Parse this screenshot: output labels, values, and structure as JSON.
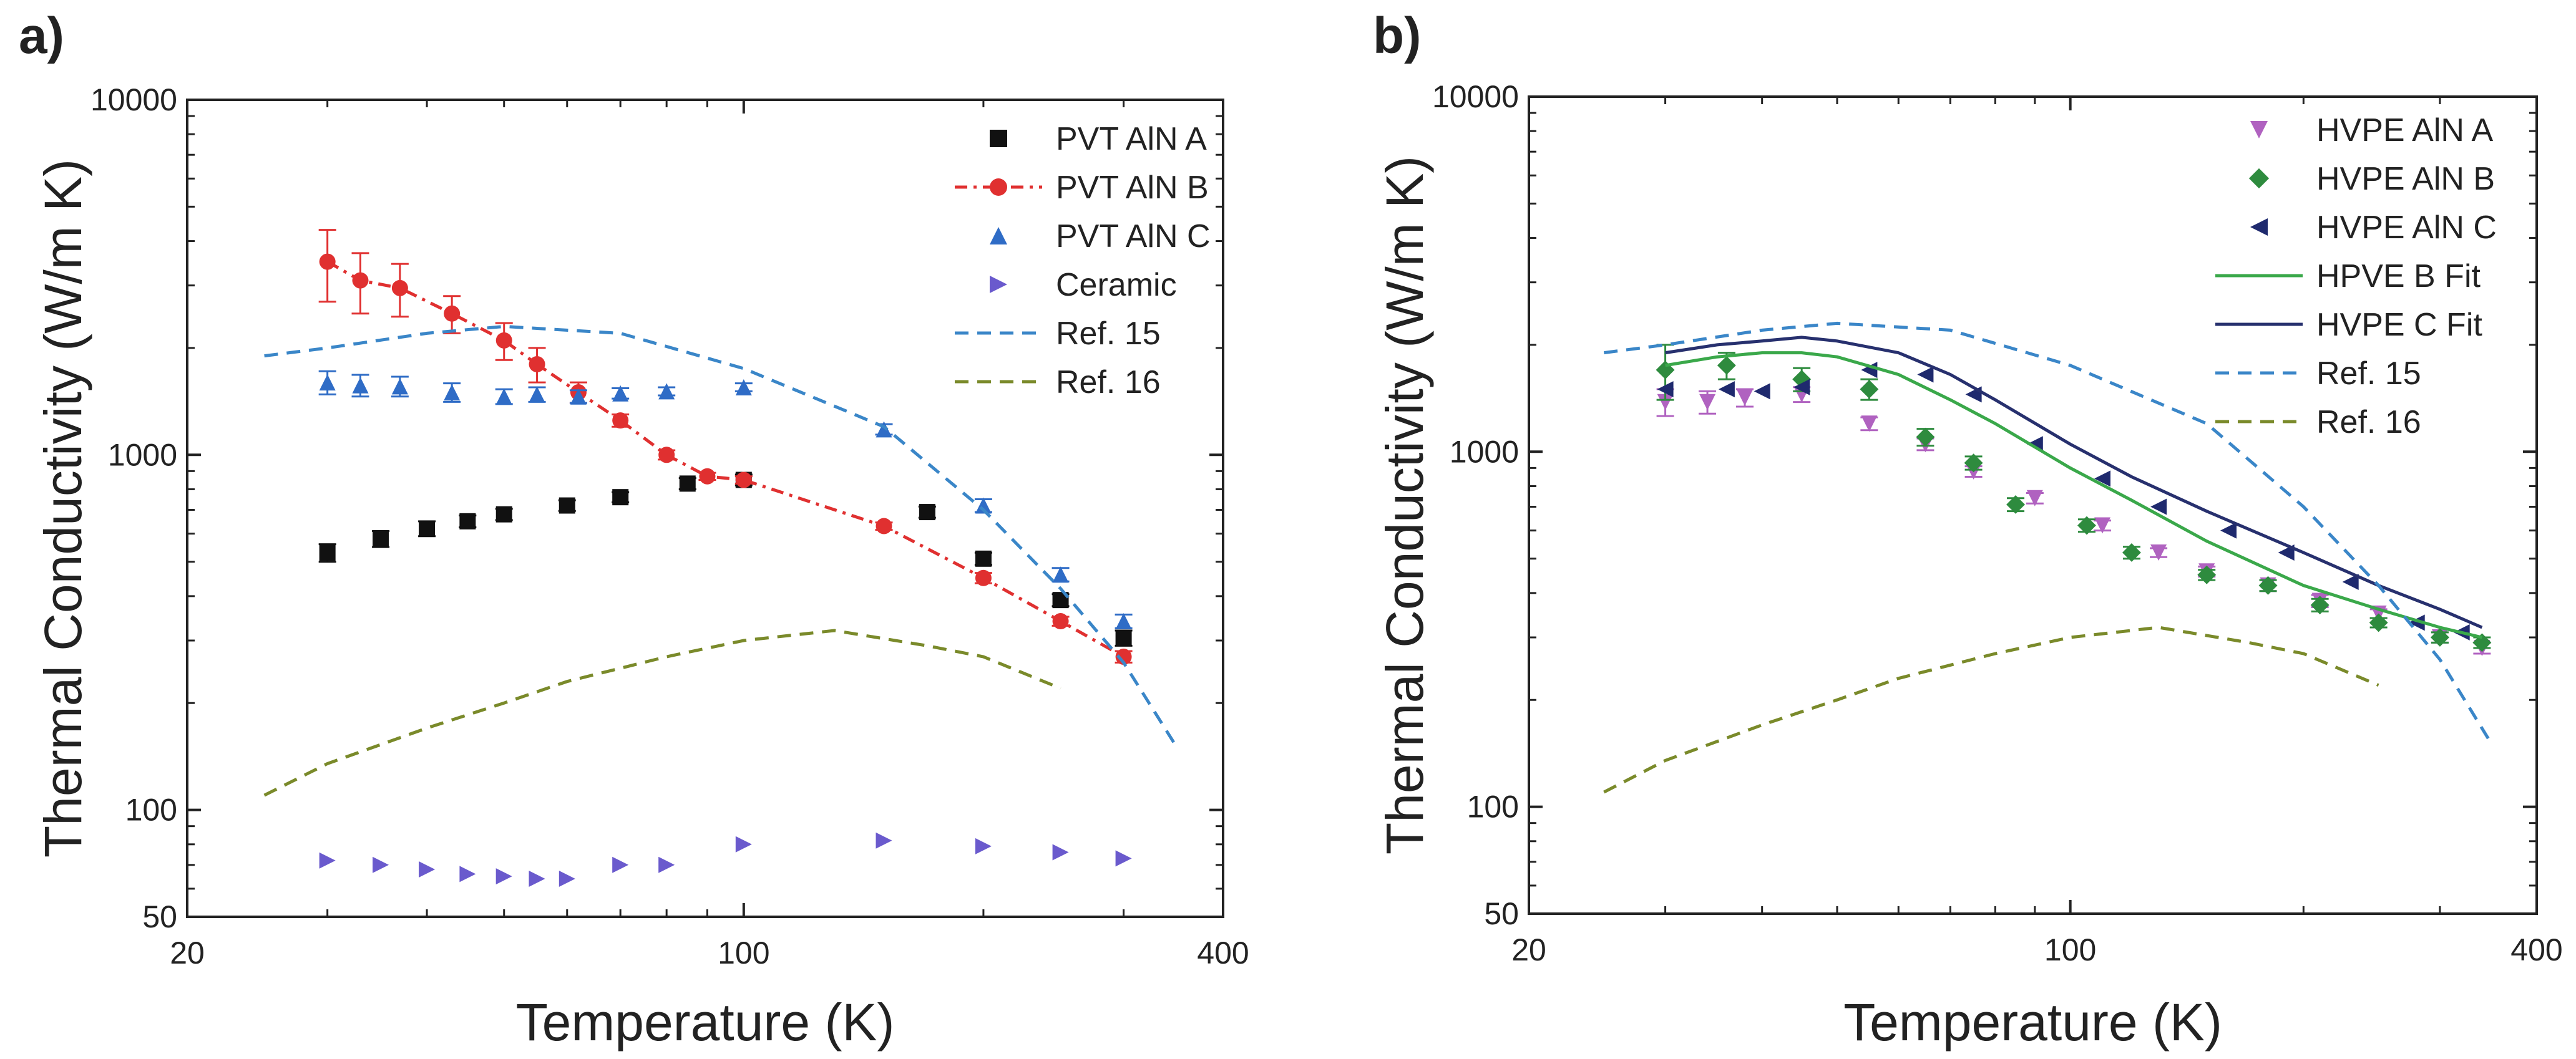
{
  "chart_data": [
    {
      "type": "scatter",
      "panel_label": "a)",
      "xlabel": "Temperature (K)",
      "ylabel": "Thermal Conductivity (W/m K)",
      "xscale": "log",
      "yscale": "log",
      "xlim": [
        20,
        400
      ],
      "ylim": [
        50,
        10000
      ],
      "xticks": [
        20,
        100,
        400
      ],
      "yticks": [
        50,
        100,
        1000,
        10000
      ],
      "legend_position": "top-right",
      "series": [
        {
          "name": "PVT AlN A",
          "legend_label": "PVT AlN A",
          "marker": "square",
          "color": "#111111",
          "line": "none",
          "x": [
            30,
            35,
            40,
            45,
            50,
            60,
            70,
            85,
            100,
            170,
            200,
            250,
            300
          ],
          "y": [
            530,
            580,
            620,
            650,
            680,
            720,
            760,
            830,
            850,
            690,
            510,
            390,
            305
          ],
          "err": [
            30,
            30,
            30,
            25,
            25,
            25,
            25,
            30,
            30,
            25,
            20,
            15,
            15
          ]
        },
        {
          "name": "PVT AlN B",
          "legend_label": "PVT AlN B",
          "marker": "circle",
          "color": "#e03030",
          "line": "dashdot",
          "x": [
            30,
            33,
            37,
            43,
            50,
            55,
            62,
            70,
            80,
            90,
            100,
            150,
            200,
            250,
            300
          ],
          "y": [
            3500,
            3100,
            2950,
            2500,
            2100,
            1800,
            1500,
            1250,
            1000,
            870,
            850,
            630,
            450,
            340,
            270
          ],
          "err": [
            800,
            600,
            500,
            300,
            250,
            200,
            100,
            50,
            30,
            20,
            20,
            15,
            15,
            10,
            10
          ]
        },
        {
          "name": "PVT AlN C",
          "legend_label": "PVT AlN C",
          "marker": "triangle-up",
          "color": "#2f6cc6",
          "line": "none",
          "x": [
            30,
            33,
            37,
            43,
            50,
            55,
            62,
            70,
            80,
            100,
            150,
            200,
            250,
            300
          ],
          "y": [
            1600,
            1570,
            1560,
            1500,
            1460,
            1480,
            1460,
            1490,
            1510,
            1550,
            1180,
            720,
            460,
            340
          ],
          "err": [
            120,
            110,
            100,
            90,
            70,
            70,
            60,
            50,
            40,
            40,
            40,
            30,
            20,
            15
          ]
        },
        {
          "name": "Ceramic",
          "legend_label": "Ceramic",
          "marker": "triangle-right",
          "color": "#6a5acd",
          "line": "none",
          "x": [
            30,
            35,
            40,
            45,
            50,
            55,
            60,
            70,
            80,
            100,
            150,
            200,
            250,
            300
          ],
          "y": [
            72,
            70,
            68,
            66,
            65,
            64,
            64,
            70,
            70,
            80,
            82,
            79,
            76,
            73
          ]
        },
        {
          "name": "Ref. 15",
          "legend_label": "Ref. 15",
          "marker": "none",
          "color": "#3a86c8",
          "line": "dashed",
          "x": [
            25,
            30,
            40,
            50,
            70,
            100,
            150,
            200,
            250,
            300,
            350
          ],
          "y": [
            1900,
            2000,
            2200,
            2300,
            2200,
            1750,
            1200,
            700,
            420,
            260,
            150
          ]
        },
        {
          "name": "Ref. 16",
          "legend_label": "Ref. 16",
          "marker": "none",
          "color": "#7a8a2a",
          "line": "dashed",
          "x": [
            25,
            30,
            40,
            50,
            60,
            80,
            100,
            130,
            170,
            200,
            250
          ],
          "y": [
            110,
            135,
            170,
            200,
            230,
            270,
            300,
            320,
            290,
            270,
            220
          ]
        }
      ]
    },
    {
      "type": "scatter",
      "panel_label": "b)",
      "xlabel": "Temperature (K)",
      "ylabel": "Thermal Conductivity (W/m K)",
      "xscale": "log",
      "yscale": "log",
      "xlim": [
        20,
        400
      ],
      "ylim": [
        50,
        10000
      ],
      "xticks": [
        20,
        100,
        400
      ],
      "yticks": [
        50,
        100,
        1000,
        10000
      ],
      "legend_position": "top-right",
      "series": [
        {
          "name": "HVPE AlN A",
          "legend_label": "HVPE AlN A",
          "marker": "triangle-down",
          "color": "#b062c0",
          "line": "none",
          "x": [
            30,
            34,
            38,
            45,
            55,
            65,
            75,
            90,
            110,
            130,
            150,
            180,
            210,
            250,
            300,
            340
          ],
          "y": [
            1380,
            1380,
            1420,
            1450,
            1200,
            1050,
            880,
            740,
            620,
            520,
            460,
            420,
            380,
            350,
            300,
            280
          ],
          "err": [
            120,
            100,
            80,
            70,
            50,
            40,
            30,
            25,
            20,
            15,
            15,
            15,
            15,
            10,
            10,
            10
          ]
        },
        {
          "name": "HVPE AlN B",
          "legend_label": "HVPE AlN B",
          "marker": "diamond",
          "color": "#2e8b3e",
          "line": "none",
          "x": [
            30,
            36,
            45,
            55,
            65,
            75,
            85,
            105,
            120,
            150,
            180,
            210,
            250,
            300,
            340
          ],
          "y": [
            1700,
            1750,
            1600,
            1500,
            1100,
            930,
            710,
            620,
            520,
            450,
            420,
            370,
            330,
            300,
            290
          ],
          "err": [
            300,
            150,
            120,
            100,
            60,
            40,
            30,
            25,
            20,
            15,
            15,
            15,
            10,
            10,
            10
          ]
        },
        {
          "name": "HVPE AlN C",
          "legend_label": "HVPE AlN C",
          "marker": "triangle-left",
          "color": "#1f2a6e",
          "line": "none",
          "x": [
            30,
            36,
            40,
            45,
            55,
            65,
            75,
            90,
            110,
            130,
            160,
            190,
            230,
            280,
            320
          ],
          "y": [
            1500,
            1500,
            1480,
            1520,
            1700,
            1650,
            1450,
            1050,
            840,
            700,
            600,
            520,
            430,
            330,
            310
          ]
        },
        {
          "name": "HPVE B Fit",
          "legend_label": "HPVE B Fit",
          "marker": "none",
          "color": "#3aa84a",
          "line": "solid",
          "x": [
            30,
            35,
            40,
            45,
            50,
            60,
            70,
            80,
            100,
            120,
            150,
            200,
            250,
            300,
            340
          ],
          "y": [
            1750,
            1850,
            1900,
            1900,
            1850,
            1650,
            1400,
            1200,
            900,
            730,
            560,
            420,
            360,
            320,
            300
          ]
        },
        {
          "name": "HVPE C Fit",
          "legend_label": "HVPE C Fit",
          "marker": "none",
          "color": "#27306e",
          "line": "solid",
          "x": [
            30,
            35,
            40,
            45,
            50,
            60,
            70,
            80,
            100,
            120,
            150,
            200,
            250,
            300,
            340
          ],
          "y": [
            1900,
            2000,
            2050,
            2100,
            2050,
            1900,
            1650,
            1400,
            1050,
            850,
            680,
            520,
            420,
            360,
            320
          ]
        },
        {
          "name": "Ref. 15",
          "legend_label": "Ref. 15",
          "marker": "none",
          "color": "#3a86c8",
          "line": "dashed",
          "x": [
            25,
            30,
            40,
            50,
            70,
            100,
            150,
            200,
            250,
            300,
            350
          ],
          "y": [
            1900,
            2000,
            2200,
            2300,
            2200,
            1750,
            1200,
            700,
            420,
            260,
            150
          ]
        },
        {
          "name": "Ref. 16",
          "legend_label": "Ref. 16",
          "marker": "none",
          "color": "#7a8a2a",
          "line": "dashed",
          "x": [
            25,
            30,
            40,
            50,
            60,
            80,
            100,
            130,
            170,
            200,
            250
          ],
          "y": [
            110,
            135,
            170,
            200,
            230,
            270,
            300,
            320,
            290,
            270,
            220
          ]
        }
      ]
    }
  ]
}
